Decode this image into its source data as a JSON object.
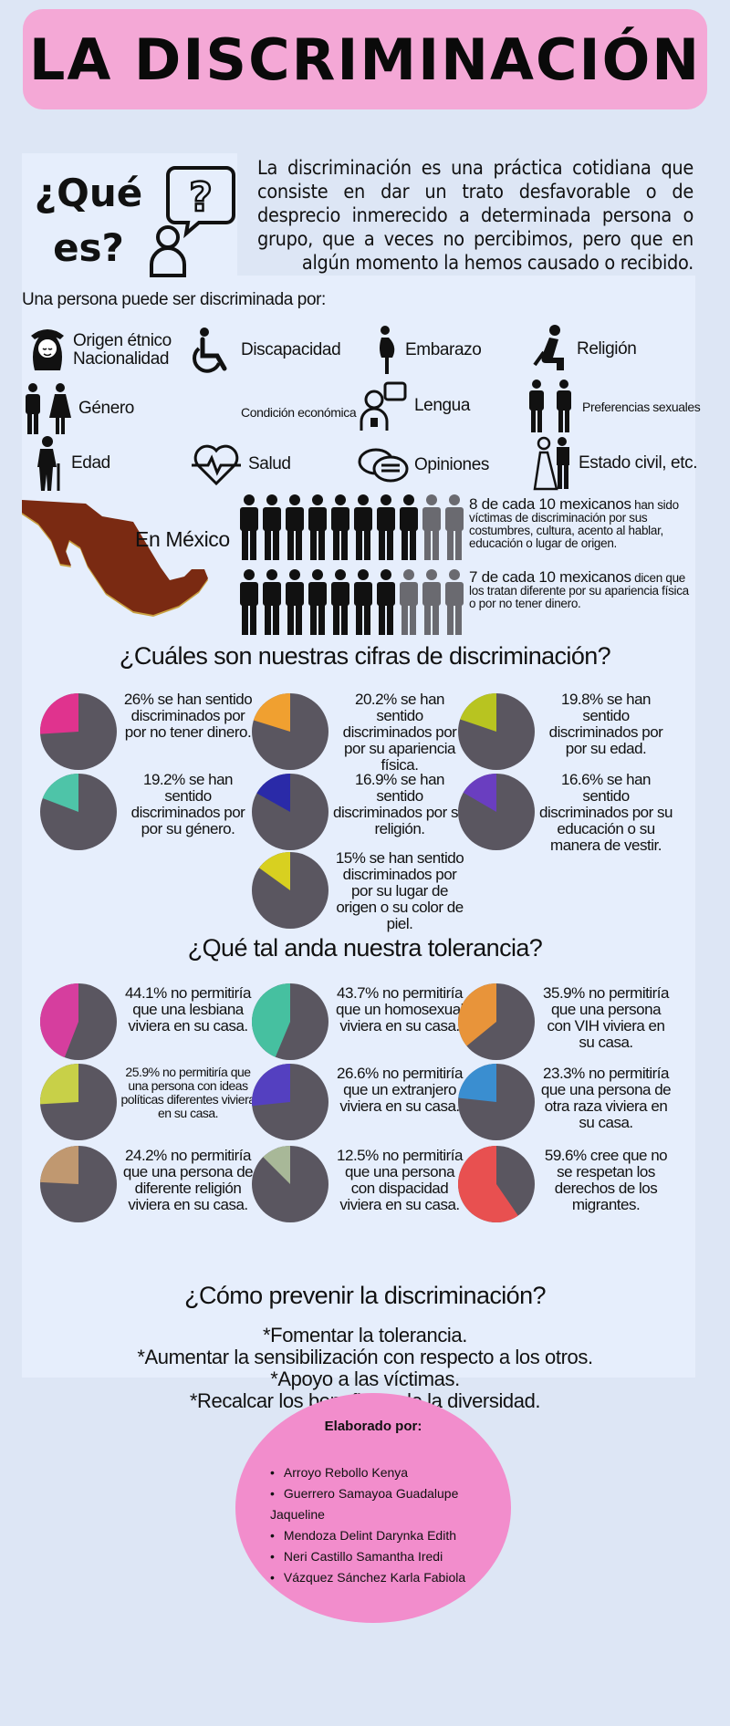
{
  "title": "LA DISCRIMINACIÓN",
  "question": {
    "line1": "¿Qué",
    "line2": "es?"
  },
  "intro": "La discriminación es una práctica cotidiana que consiste en dar un trato desfavorable o de desprecio inmerecido a determinada persona o grupo, que a veces no percibimos, pero que en algún momento la hemos causado o recibido.",
  "lead": "Una persona puede ser discriminada por:",
  "categories": [
    {
      "line1": "Origen étnico",
      "line2": "Nacionalidad",
      "icon": "woman-face-icon"
    },
    {
      "line1": "Discapacidad",
      "line2": "",
      "icon": "wheelchair-icon"
    },
    {
      "line1": "Embarazo",
      "line2": "",
      "icon": "pregnant-woman-icon"
    },
    {
      "line1": "Religión",
      "line2": "",
      "icon": "praying-person-icon"
    },
    {
      "line1": "Género",
      "line2": "",
      "icon": "man-woman-icon"
    },
    {
      "line1": "Condición económica",
      "line2": "",
      "icon": ""
    },
    {
      "line1": "Lengua",
      "line2": "",
      "icon": "speaking-person-icon"
    },
    {
      "line1": "Preferencias sexuales",
      "line2": "",
      "icon": "couple-icon"
    },
    {
      "line1": "Edad",
      "line2": "",
      "icon": "elderly-cane-icon"
    },
    {
      "line1": "Salud",
      "line2": "",
      "icon": "heartbeat-icon"
    },
    {
      "line1": "Opiniones",
      "line2": "",
      "icon": "speech-bubbles-icon"
    },
    {
      "line1": "Estado civil, etc.",
      "line2": "",
      "icon": "married-couple-icon"
    }
  ],
  "mexico": {
    "label": "En México",
    "stats": [
      {
        "filled": 8,
        "total": 10,
        "strong": "8 de cada 10 mexicanos",
        "rest": " han sido víctimas de discriminación por sus costumbres, cultura, acento al hablar, educación o lugar de origen."
      },
      {
        "filled": 7,
        "total": 10,
        "strong": "7 de cada 10 mexicanos",
        "rest": " dicen que los tratan diferente por su apariencia física o por no tener dinero."
      }
    ]
  },
  "figures": {
    "heading": "¿Cuáles son nuestras cifras de discriminación?",
    "items": [
      {
        "pct": 26,
        "color": "#e0338e",
        "text": "26% se han sentido discriminados por por no tener dinero."
      },
      {
        "pct": 20.2,
        "color": "#f0a030",
        "text": "20.2% se han sentido discriminados por por su apariencia física."
      },
      {
        "pct": 19.8,
        "color": "#b8c420",
        "text": "19.8% se han sentido discriminados por por su edad."
      },
      {
        "pct": 19.2,
        "color": "#4ec4a8",
        "text": "19.2% se han sentido discriminados por por su género."
      },
      {
        "pct": 16.9,
        "color": "#2a2aa8",
        "text": "16.9% se han sentido discriminados por su religión."
      },
      {
        "pct": 16.6,
        "color": "#6a3ec0",
        "text": "16.6% se han sentido discriminados por su educación o su manera de vestir."
      },
      {
        "pct": 15,
        "color": "#d8d020",
        "text": "15% se han sentido discriminados por por su lugar de origen o su color de piel."
      }
    ]
  },
  "tolerance": {
    "heading": "¿Qué tal anda nuestra tolerancia?",
    "items": [
      {
        "pct": 44.1,
        "color": "#d63e9e",
        "text": "44.1% no permitiría que una lesbiana viviera en su casa."
      },
      {
        "pct": 43.7,
        "color": "#46c0a0",
        "text": "43.7% no permitiría que un homosexual viviera en su casa."
      },
      {
        "pct": 35.9,
        "color": "#e8943a",
        "text": "35.9% no permitiría que una persona con VIH viviera en su casa."
      },
      {
        "pct": 25.9,
        "color": "#c8d048",
        "text": "25.9% no permitiría que una persona con ideas políticas diferentes viviera en su casa."
      },
      {
        "pct": 26.6,
        "color": "#5440c0",
        "text": "26.6% no permitiría que un extranjero viviera en su casa."
      },
      {
        "pct": 23.3,
        "color": "#3a8ed0",
        "text": "23.3% no permitiría que una persona de otra raza viviera en su casa."
      },
      {
        "pct": 24.2,
        "color": "#c09870",
        "text": "24.2% no permitiría que una persona de diferente religión viviera en su casa."
      },
      {
        "pct": 12.5,
        "color": "#a8b898",
        "text": "12.5% no permitiría que una persona con dispacidad viviera en su casa."
      },
      {
        "pct": 59.6,
        "color": "#e85050",
        "text": "59.6% cree que no se respetan los derechos de los migrantes."
      }
    ]
  },
  "prevention": {
    "heading": "¿Cómo prevenir la discriminación?",
    "lines": [
      "*Fomentar la tolerancia.",
      "*Aumentar la sensibilización con respecto a los otros.",
      "*Apoyo a las víctimas.",
      "*Recalcar los beneficios de la diversidad."
    ]
  },
  "credits": {
    "heading": "Elaborado por:",
    "names": [
      "Arroyo Rebollo Kenya",
      "Guerrero Samayoa Guadalupe Jaqueline",
      "Mendoza Delint Darynka Edith",
      "Neri Castillo Samantha Iredi",
      "Vázquez Sánchez Karla Fabiola"
    ]
  },
  "colors": {
    "banner": "#f4a8d6",
    "pie_base": "#5a5660",
    "credits_bg": "#f28dcc",
    "map": "#7a2a12"
  }
}
